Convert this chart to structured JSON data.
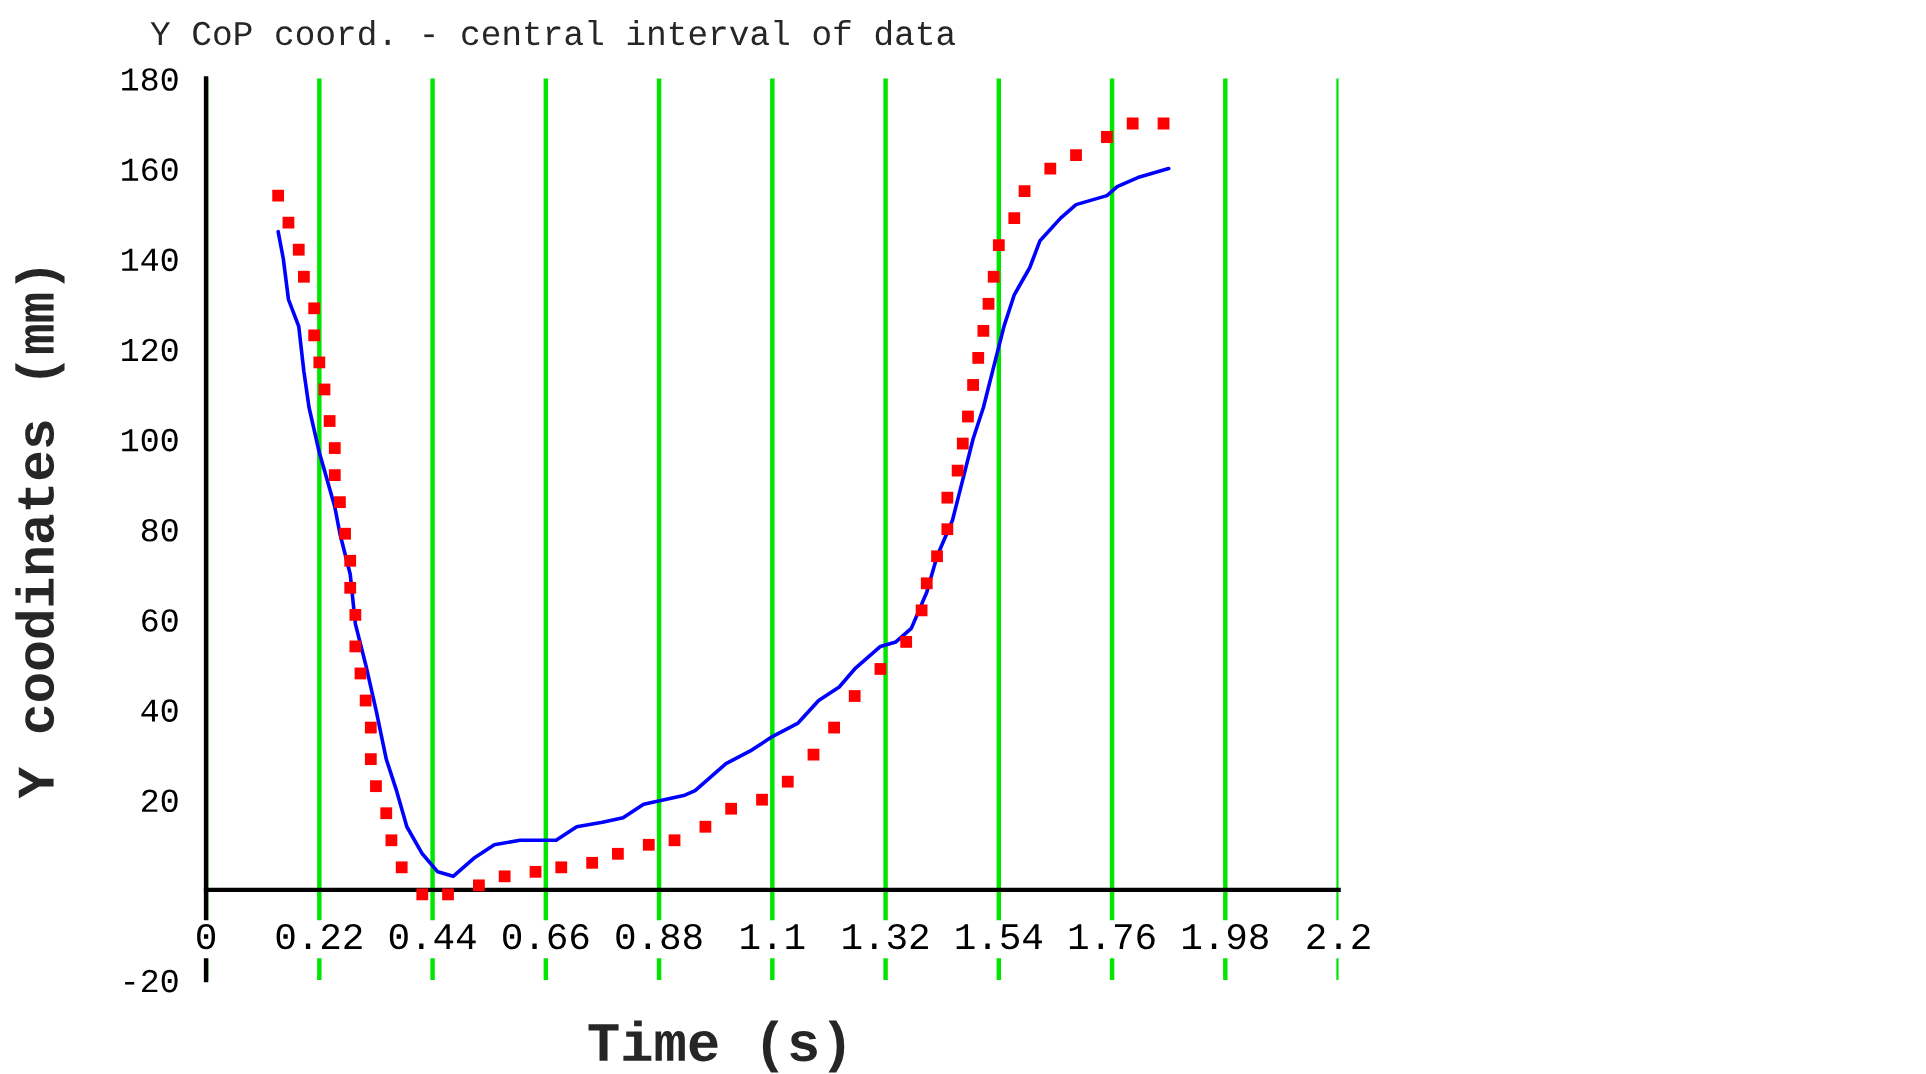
{
  "chart_data": {
    "type": "line",
    "title": "Y CoP coord. - central interval of data",
    "xlabel": "Time (s)",
    "ylabel": "Y coodinates (mm)",
    "xlim": [
      0,
      2.2
    ],
    "ylim": [
      -20,
      180
    ],
    "xticks": [
      0,
      0.22,
      0.44,
      0.66,
      0.88,
      1.1,
      1.32,
      1.54,
      1.76,
      1.98,
      2.2
    ],
    "yticks": [
      -20,
      20,
      40,
      60,
      80,
      100,
      120,
      140,
      160,
      180
    ],
    "grid": "x",
    "series": [
      {
        "type": "scatter",
        "marker": "square",
        "color": "#ff0000",
        "x": [
          0.14,
          0.16,
          0.18,
          0.19,
          0.21,
          0.21,
          0.22,
          0.23,
          0.24,
          0.25,
          0.25,
          0.26,
          0.27,
          0.28,
          0.28,
          0.29,
          0.29,
          0.3,
          0.31,
          0.32,
          0.32,
          0.33,
          0.35,
          0.36,
          0.38,
          0.42,
          0.47,
          0.53,
          0.58,
          0.64,
          0.69,
          0.75,
          0.8,
          0.86,
          0.91,
          0.97,
          1.02,
          1.08,
          1.13,
          1.18,
          1.22,
          1.26,
          1.31,
          1.36,
          1.39,
          1.4,
          1.42,
          1.44,
          1.44,
          1.46,
          1.47,
          1.48,
          1.49,
          1.5,
          1.51,
          1.52,
          1.53,
          1.54,
          1.57,
          1.59,
          1.64,
          1.69,
          1.75,
          1.8,
          1.86
        ],
        "values": [
          154,
          148,
          142,
          136,
          129,
          123,
          117,
          111,
          104,
          98,
          92,
          86,
          79,
          73,
          67,
          61,
          54,
          48,
          42,
          36,
          29,
          23,
          17,
          11,
          5,
          -1,
          -1,
          1,
          3,
          4,
          5,
          6,
          8,
          10,
          11,
          14,
          18,
          20,
          24,
          30,
          36,
          43,
          49,
          55,
          62,
          68,
          74,
          80,
          87,
          93,
          99,
          105,
          112,
          118,
          124,
          130,
          136,
          143,
          149,
          155,
          160,
          163,
          167,
          170,
          170
        ]
      },
      {
        "color": "#0000ff",
        "line_style": "solid",
        "x": [
          0.14,
          0.15,
          0.16,
          0.18,
          0.19,
          0.2,
          0.22,
          0.23,
          0.25,
          0.26,
          0.28,
          0.29,
          0.31,
          0.33,
          0.35,
          0.37,
          0.39,
          0.42,
          0.45,
          0.48,
          0.52,
          0.56,
          0.61,
          0.64,
          0.68,
          0.72,
          0.77,
          0.81,
          0.85,
          0.89,
          0.93,
          0.95,
          0.98,
          1.01,
          1.06,
          1.1,
          1.15,
          1.19,
          1.23,
          1.26,
          1.31,
          1.34,
          1.37,
          1.4,
          1.42,
          1.45,
          1.47,
          1.49,
          1.51,
          1.53,
          1.55,
          1.57,
          1.6,
          1.62,
          1.66,
          1.69,
          1.75,
          1.77,
          1.81,
          1.84,
          1.87
        ],
        "values": [
          146,
          140,
          131,
          125,
          115,
          107,
          97,
          93,
          85,
          79,
          70,
          59,
          50,
          40,
          29,
          22,
          14,
          8,
          4,
          3,
          7,
          10,
          11,
          11,
          11,
          14,
          15,
          16,
          19,
          20,
          21,
          22,
          25,
          28,
          31,
          34,
          37,
          42,
          45,
          49,
          54,
          55,
          58,
          66,
          74,
          82,
          91,
          100,
          107,
          116,
          125,
          132,
          138,
          144,
          149,
          152,
          154,
          156,
          158,
          159,
          160
        ]
      }
    ]
  }
}
